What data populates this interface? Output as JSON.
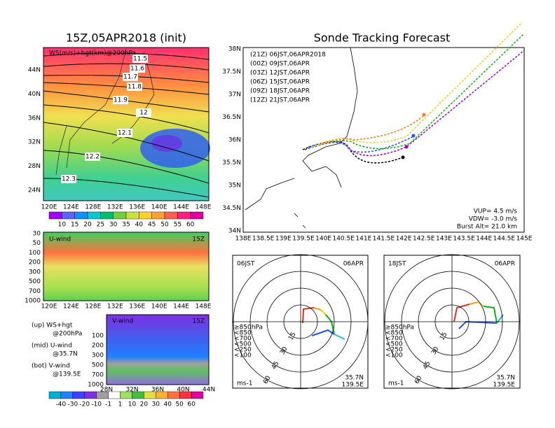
{
  "left_map": {
    "title": "15Z,05APR2018 (init)",
    "label": "WS(m/s)+hgt(km)@200hPa",
    "contour_labels": [
      "11.5",
      "11.6",
      "11.7",
      "11.8",
      "11.9",
      "12",
      "12.1",
      "12.2",
      "12.3"
    ],
    "yticks": [
      "44N",
      "40N",
      "36N",
      "32N",
      "28N",
      "24N"
    ],
    "xticks": [
      "120E",
      "124E",
      "128E",
      "132E",
      "136E",
      "140E",
      "144E",
      "148E"
    ],
    "colorbar": [
      "10",
      "15",
      "20",
      "25",
      "30",
      "35",
      "40",
      "45",
      "50",
      "55",
      "60"
    ]
  },
  "u_panel": {
    "label": "U-wind",
    "time": "15Z",
    "yticks": [
      "30",
      "50",
      "100",
      "200",
      "300",
      "500",
      "700",
      "1000"
    ],
    "xticks": [
      "120E",
      "124E",
      "128E",
      "132E",
      "136E",
      "140E",
      "144E",
      "148E"
    ]
  },
  "v_panel": {
    "label": "V-wind",
    "time": "15Z",
    "yticks": [
      "100",
      "200",
      "300",
      "500",
      "700",
      "1000"
    ],
    "xticks": [
      "28N",
      "32N",
      "36N",
      "40N",
      "44N"
    ]
  },
  "notes": [
    "(up) WS+hgt",
    "@200hPa",
    "(mid) U-wind",
    "@35.7N",
    "(bot) V-wind",
    "@139.5E"
  ],
  "v_colorbar": [
    "-40",
    "-30",
    "-20",
    "-10",
    "-1",
    "1",
    "10",
    "20",
    "30",
    "40",
    "50",
    "60"
  ],
  "track": {
    "title": "Sonde Tracking Forecast",
    "times": [
      "(21Z) 06JST,06APR2018",
      "(00Z) 09JST,06APR",
      "(03Z) 12JST,06APR",
      "(06Z) 15JST,06APR",
      "(09Z) 18JST,06APR",
      "(12Z) 21JST,06APR"
    ],
    "colors": [
      "#000000",
      "#a000c8",
      "#2050ff",
      "#10b010",
      "#e8d020",
      "#f08020"
    ],
    "yticks": [
      "38N",
      "37.5N",
      "37N",
      "36.5N",
      "36N",
      "35.5N",
      "35N",
      "34.5N",
      "34N"
    ],
    "xticks": [
      "138E",
      "138.5E",
      "139E",
      "139.5E",
      "140E",
      "140.5E",
      "141E",
      "141.5E",
      "142E",
      "142.5E",
      "143E",
      "143.5E",
      "144E",
      "144.5E",
      "145E"
    ],
    "params": [
      "VUP= 4.5 m/s",
      "VDW= -3.0 m/s",
      "Burst Alt= 21.0 km"
    ]
  },
  "hodographs": [
    {
      "time": "06JST",
      "date": "06APR",
      "levels": [
        "≥850hPa",
        "<850",
        "<700",
        "<500",
        "<250",
        "<100"
      ],
      "rings": [
        "15",
        "30",
        "45",
        "60"
      ],
      "unit": "ms-1",
      "location": [
        "35.7N",
        "139.5E"
      ]
    },
    {
      "time": "18JST",
      "date": "06APR",
      "levels": [
        "≥850hPa",
        "<850",
        "<700",
        "<500",
        "<250",
        "<100"
      ],
      "rings": [
        "15",
        "30",
        "45",
        "60"
      ],
      "unit": "ms-1",
      "location": [
        "35.7N",
        "139.5E"
      ]
    }
  ]
}
